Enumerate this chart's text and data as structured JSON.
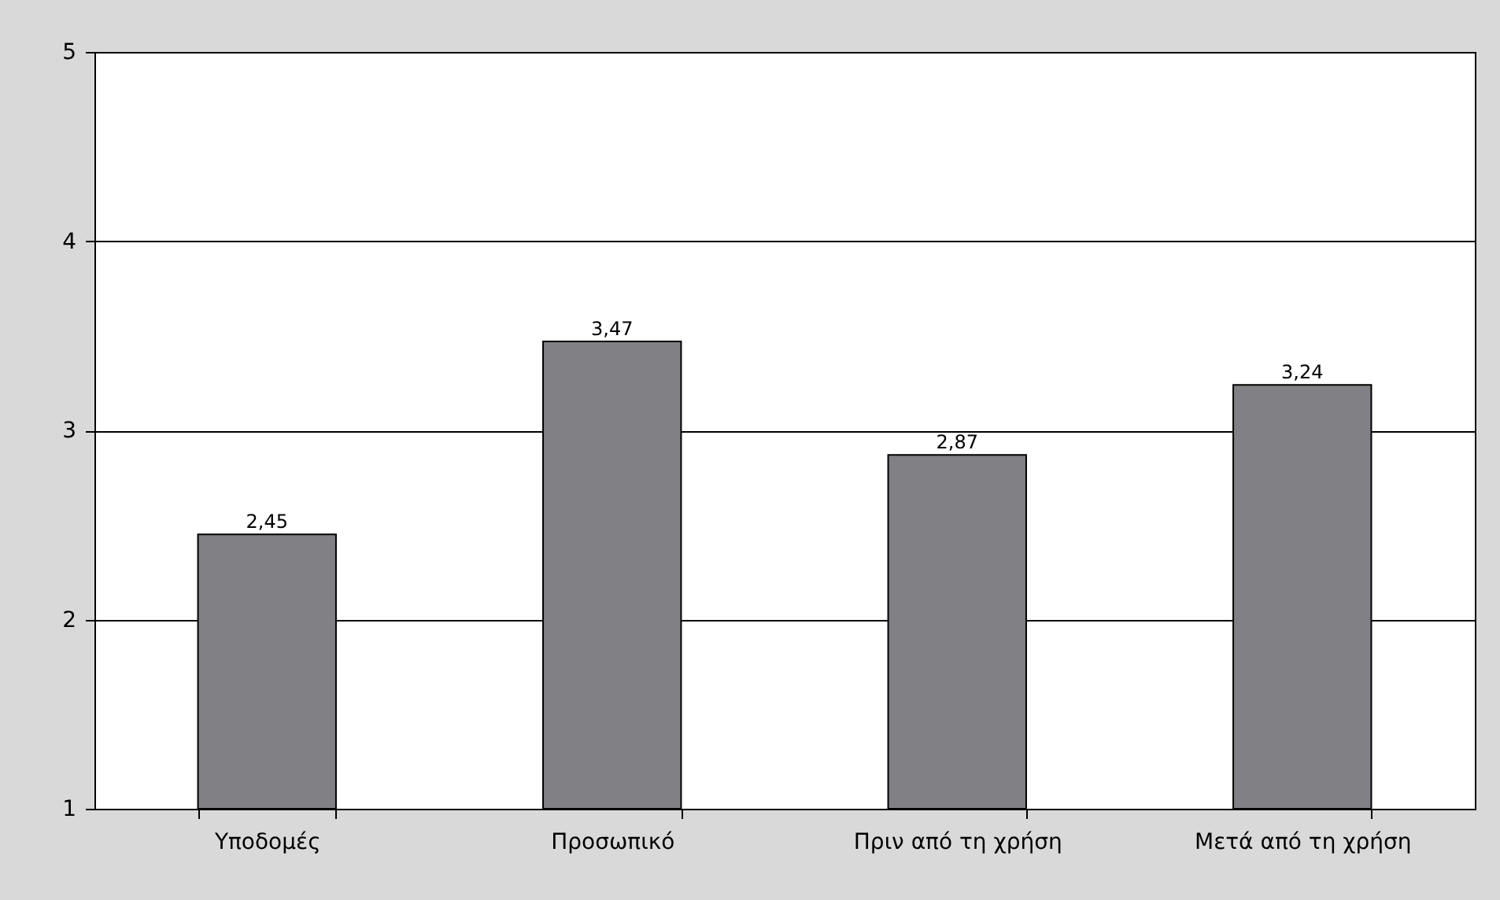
{
  "chart_data": {
    "type": "bar",
    "categories": [
      "Υποδομές",
      "Προσωπικό",
      "Πριν από τη χρήση",
      "Μετά από τη χρήση"
    ],
    "values": [
      2.45,
      3.47,
      2.87,
      3.24
    ],
    "value_labels": [
      "2,45",
      "3,47",
      "2,87",
      "3,24"
    ],
    "color": "#808085",
    "ylim": [
      1,
      5
    ],
    "yticks": [
      1,
      2,
      3,
      4,
      5
    ],
    "grid": "y"
  }
}
